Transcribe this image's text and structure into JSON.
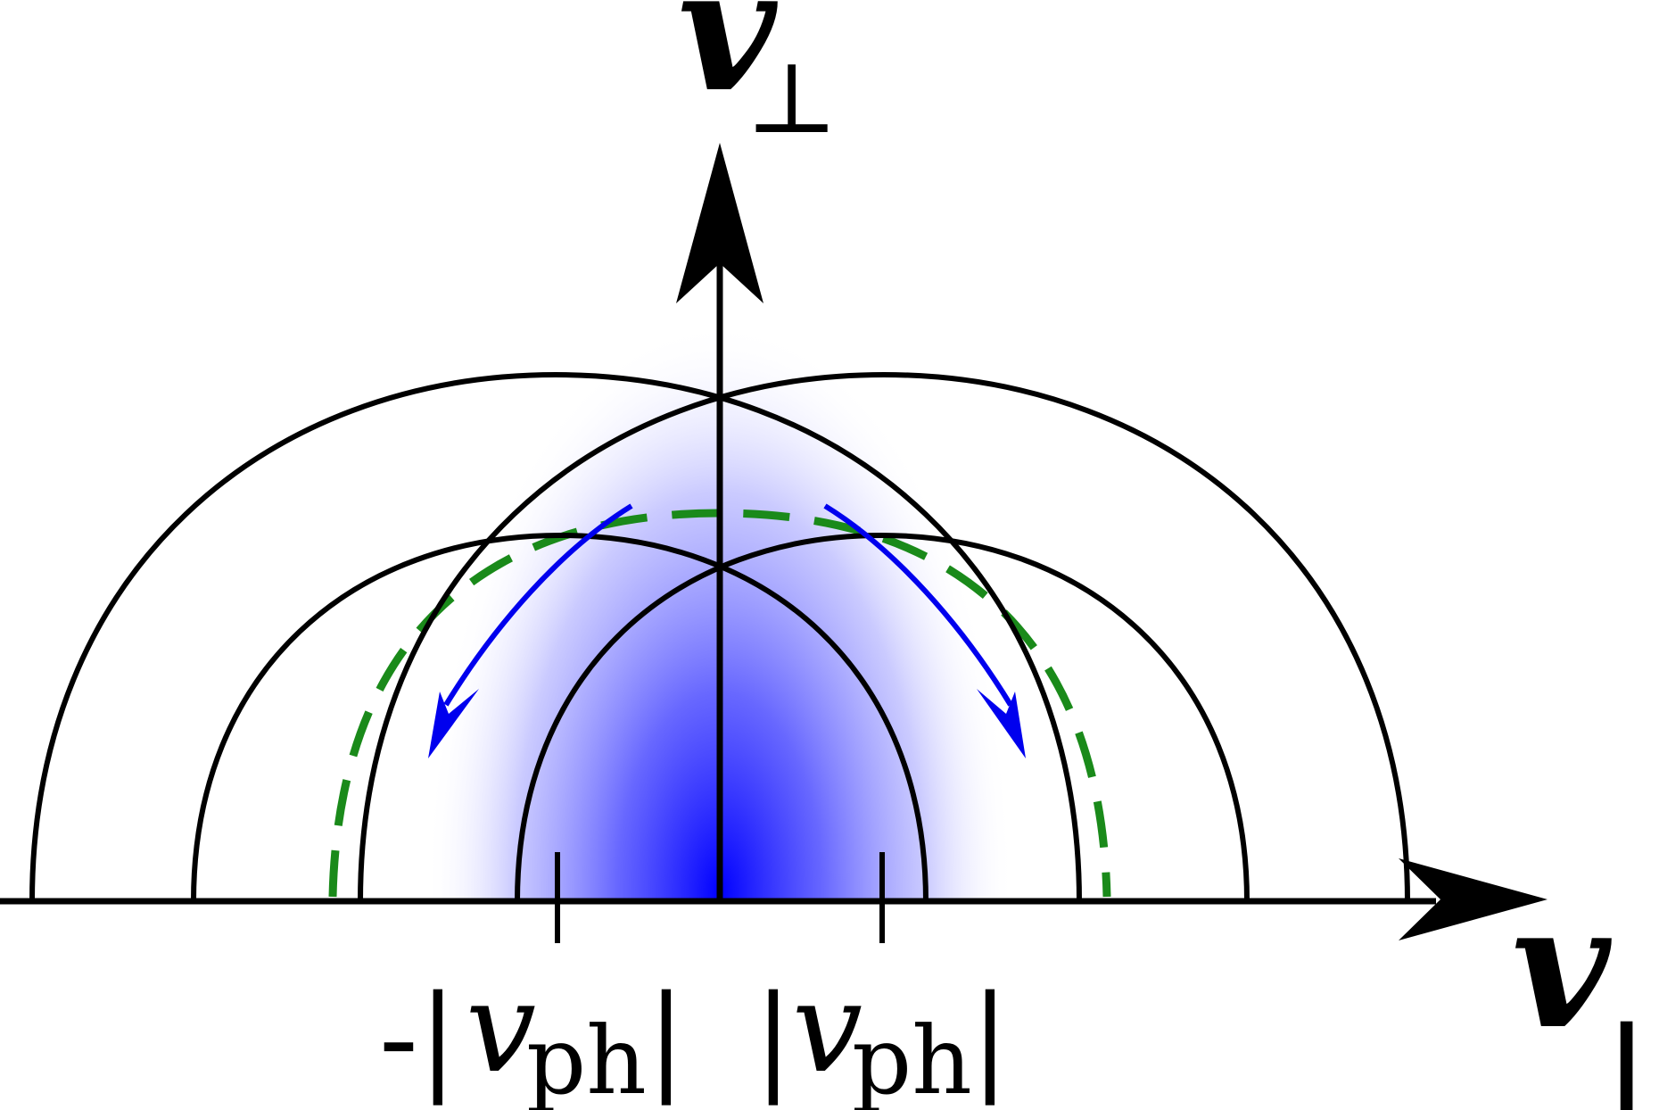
{
  "diagram": {
    "y_axis": {
      "symbol": "v",
      "subscript": "⊥"
    },
    "x_axis": {
      "symbol": "v",
      "subscript": "||"
    },
    "ticks": [
      {
        "name": "minus-v-ph",
        "prefix": "-|",
        "symbol": "v",
        "subscript": "ph",
        "suffix": "|"
      },
      {
        "name": "plus-v-ph",
        "prefix": "|",
        "symbol": "v",
        "subscript": "ph",
        "suffix": "|"
      }
    ],
    "colors": {
      "axes": "#000000",
      "contours": "#000000",
      "distribution": "#0000ff",
      "dashed_path": "#1a8a1a",
      "diffusion_arrows": "#0000ee"
    },
    "icons": {
      "axis_arrowhead": "arrowhead-icon",
      "diffusion_arrowhead": "arrowhead-icon"
    }
  }
}
